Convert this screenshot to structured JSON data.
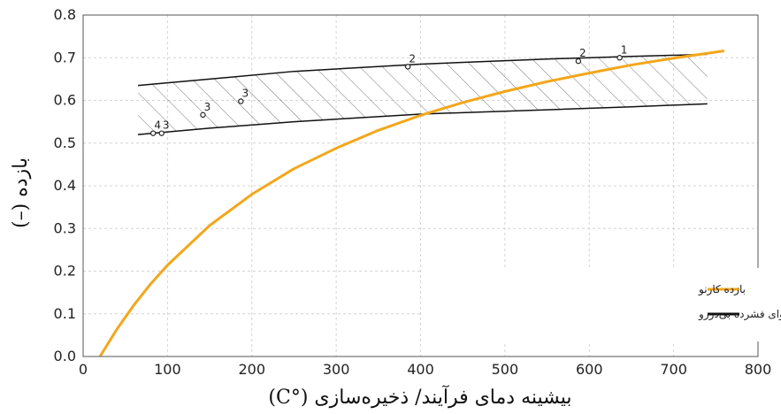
{
  "chart_data": {
    "type": "line",
    "xlabel": "بیشینه دمای فرآیند/ ذخیره‌سازی (°C)",
    "ylabel": "بازده (–)",
    "xlim": [
      0,
      800
    ],
    "ylim": [
      0.0,
      0.8
    ],
    "x_ticks": [
      "0",
      "100",
      "200",
      "300",
      "400",
      "500",
      "600",
      "700",
      "800"
    ],
    "y_ticks": [
      "0.0",
      "0.1",
      "0.2",
      "0.3",
      "0.4",
      "0.5",
      "0.6",
      "0.7",
      "0.8"
    ],
    "grid": true,
    "legend_position": "bottom-right",
    "series": [
      {
        "name": "بازده کارنو",
        "color": "#f2a71b",
        "x": [
          20,
          40,
          60,
          80,
          100,
          150,
          200,
          250,
          300,
          350,
          400,
          450,
          500,
          550,
          600,
          650,
          700,
          760
        ],
        "y": [
          0.0,
          0.064,
          0.12,
          0.17,
          0.214,
          0.307,
          0.38,
          0.44,
          0.488,
          0.53,
          0.565,
          0.595,
          0.621,
          0.644,
          0.664,
          0.683,
          0.699,
          0.716
        ]
      },
      {
        "name": "بازده چرخه ذخیره‌سازی انرژی هوای فشرده بی‌دررو",
        "color": "#111111",
        "x": [
          65,
          150,
          250,
          400,
          550,
          650,
          740
        ],
        "y": [
          0.635,
          0.65,
          0.668,
          0.685,
          0.697,
          0.703,
          0.708
        ],
        "lower_x": [
          65,
          150,
          250,
          400,
          550,
          650,
          740
        ],
        "lower_y": [
          0.52,
          0.535,
          0.55,
          0.568,
          0.578,
          0.585,
          0.592
        ]
      }
    ],
    "points": [
      {
        "label": "1",
        "x": 636,
        "y": 0.7
      },
      {
        "label": "2",
        "x": 587,
        "y": 0.692
      },
      {
        "label": "2",
        "x": 385,
        "y": 0.679
      },
      {
        "label": "3",
        "x": 187,
        "y": 0.598
      },
      {
        "label": "3",
        "x": 142,
        "y": 0.566
      },
      {
        "label": "3",
        "x": 93,
        "y": 0.523
      },
      {
        "label": "4",
        "x": 83,
        "y": 0.523
      }
    ]
  }
}
